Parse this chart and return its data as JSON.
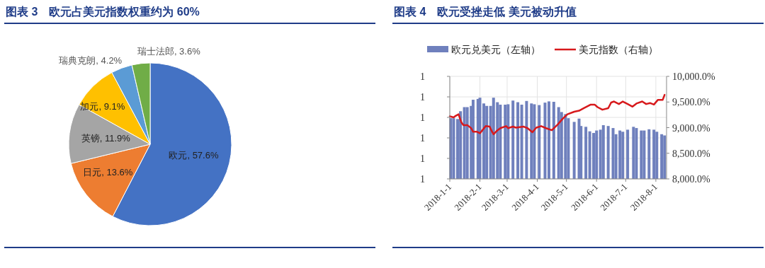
{
  "chart_data": [
    {
      "type": "pie",
      "title": "图表 3　欧元占美元指数权重约为 60%",
      "categories": [
        "欧元",
        "日元",
        "英镑",
        "加元",
        "瑞典克朗",
        "瑞士法郎"
      ],
      "values": [
        57.6,
        13.6,
        11.9,
        9.1,
        4.2,
        3.6
      ],
      "value_labels": [
        "57.6%",
        "13.6%",
        "11.9%",
        "9.1%",
        "4.2%",
        "3.6%"
      ],
      "colors": [
        "#4472c4",
        "#ed7d31",
        "#a5a5a5",
        "#ffc000",
        "#5b9bd5",
        "#70ad47"
      ]
    },
    {
      "type": "bar",
      "title": "图表 4　欧元受挫走低 美元被动升值",
      "grid": true,
      "legend": "top",
      "xlim": [
        "2018-01-01",
        "2018-08-12"
      ],
      "xticks": [
        {
          "value": "2018-01-01",
          "label": "2018-1-1"
        },
        {
          "value": "2018-02-01",
          "label": "2018-2-1"
        },
        {
          "value": "2018-03-01",
          "label": "2018-3-1"
        },
        {
          "value": "2018-04-01",
          "label": "2018-4-1"
        },
        {
          "value": "2018-05-01",
          "label": "2018-5-1"
        },
        {
          "value": "2018-06-01",
          "label": "2018-6-1"
        },
        {
          "value": "2018-07-01",
          "label": "2018-7-1"
        },
        {
          "value": "2018-08-01",
          "label": "2018-8-1"
        }
      ],
      "ylim": [
        1.05,
        1.3
      ],
      "yticks": [
        {
          "value": 1.05,
          "label": "1"
        },
        {
          "value": 1.1,
          "label": "1"
        },
        {
          "value": 1.15,
          "label": "1"
        },
        {
          "value": 1.2,
          "label": "1"
        },
        {
          "value": 1.25,
          "label": "1"
        },
        {
          "value": 1.3,
          "label": "1"
        }
      ],
      "y2lim": [
        8000,
        10000
      ],
      "y2ticks": [
        {
          "value": 8000,
          "label": "8,000.0%"
        },
        {
          "value": 8500,
          "label": "8,500.0%"
        },
        {
          "value": 9000,
          "label": "9,000.0%"
        },
        {
          "value": 9500,
          "label": "9,500.0%"
        },
        {
          "value": 10000,
          "label": "10,000.0%"
        }
      ],
      "series": [
        {
          "name": "欧元兑美元（左轴）",
          "type": "bar",
          "color": "#6f80bd",
          "x": [
            "2018-01-02",
            "2018-01-05",
            "2018-01-09",
            "2018-01-12",
            "2018-01-16",
            "2018-01-19",
            "2018-01-23",
            "2018-01-25",
            "2018-01-30",
            "2018-02-01",
            "2018-02-05",
            "2018-02-08",
            "2018-02-12",
            "2018-02-15",
            "2018-02-19",
            "2018-02-22",
            "2018-02-27",
            "2018-03-02",
            "2018-03-07",
            "2018-03-12",
            "2018-03-16",
            "2018-03-21",
            "2018-03-26",
            "2018-03-29",
            "2018-04-03",
            "2018-04-09",
            "2018-04-13",
            "2018-04-18",
            "2018-04-23",
            "2018-04-26",
            "2018-04-30",
            "2018-05-03",
            "2018-05-09",
            "2018-05-14",
            "2018-05-16",
            "2018-05-21",
            "2018-05-25",
            "2018-05-29",
            "2018-06-01",
            "2018-06-05",
            "2018-06-08",
            "2018-06-13",
            "2018-06-18",
            "2018-06-21",
            "2018-06-25",
            "2018-06-28",
            "2018-07-03",
            "2018-07-09",
            "2018-07-12",
            "2018-07-17",
            "2018-07-20",
            "2018-07-25",
            "2018-07-30",
            "2018-08-02",
            "2018-08-07",
            "2018-08-10"
          ],
          "values": [
            1.198,
            1.198,
            1.196,
            1.215,
            1.225,
            1.225,
            1.228,
            1.243,
            1.245,
            1.248,
            1.234,
            1.228,
            1.228,
            1.248,
            1.237,
            1.231,
            1.231,
            1.232,
            1.241,
            1.237,
            1.231,
            1.24,
            1.234,
            1.232,
            1.23,
            1.236,
            1.239,
            1.238,
            1.225,
            1.213,
            1.208,
            1.198,
            1.189,
            1.197,
            1.179,
            1.177,
            1.166,
            1.162,
            1.168,
            1.17,
            1.181,
            1.179,
            1.174,
            1.159,
            1.168,
            1.165,
            1.17,
            1.177,
            1.174,
            1.168,
            1.168,
            1.171,
            1.17,
            1.165,
            1.159,
            1.156
          ]
        },
        {
          "name": "美元指数（右轴）",
          "type": "line",
          "axis": "y2",
          "color": "#d7191c",
          "x": [
            "2018-01-01",
            "2018-01-05",
            "2018-01-07",
            "2018-01-10",
            "2018-01-13",
            "2018-01-15",
            "2018-01-19",
            "2018-01-23",
            "2018-01-25",
            "2018-01-29",
            "2018-02-01",
            "2018-02-04",
            "2018-02-07",
            "2018-02-11",
            "2018-02-13",
            "2018-02-15",
            "2018-02-18",
            "2018-02-22",
            "2018-02-28",
            "2018-03-02",
            "2018-03-07",
            "2018-03-10",
            "2018-03-14",
            "2018-03-18",
            "2018-03-22",
            "2018-03-27",
            "2018-03-31",
            "2018-04-05",
            "2018-04-10",
            "2018-04-16",
            "2018-04-22",
            "2018-04-27",
            "2018-05-02",
            "2018-05-09",
            "2018-05-14",
            "2018-05-19",
            "2018-05-26",
            "2018-05-30",
            "2018-06-02",
            "2018-06-07",
            "2018-06-13",
            "2018-06-16",
            "2018-06-19",
            "2018-06-24",
            "2018-06-28",
            "2018-07-03",
            "2018-07-08",
            "2018-07-12",
            "2018-07-18",
            "2018-07-22",
            "2018-07-26",
            "2018-07-30",
            "2018-08-03",
            "2018-08-08",
            "2018-08-10"
          ],
          "values": [
            9220,
            9200,
            9230,
            9260,
            9100,
            9050,
            9050,
            8990,
            8920,
            8920,
            8890,
            8960,
            9030,
            9020,
            8940,
            8870,
            8930,
            8990,
            9030,
            8990,
            9020,
            9000,
            9010,
            9020,
            8990,
            8910,
            9000,
            9030,
            8990,
            8950,
            9060,
            9170,
            9260,
            9310,
            9330,
            9380,
            9450,
            9450,
            9400,
            9350,
            9380,
            9490,
            9510,
            9460,
            9510,
            9460,
            9410,
            9470,
            9510,
            9460,
            9480,
            9450,
            9540,
            9540,
            9640
          ]
        }
      ]
    }
  ]
}
